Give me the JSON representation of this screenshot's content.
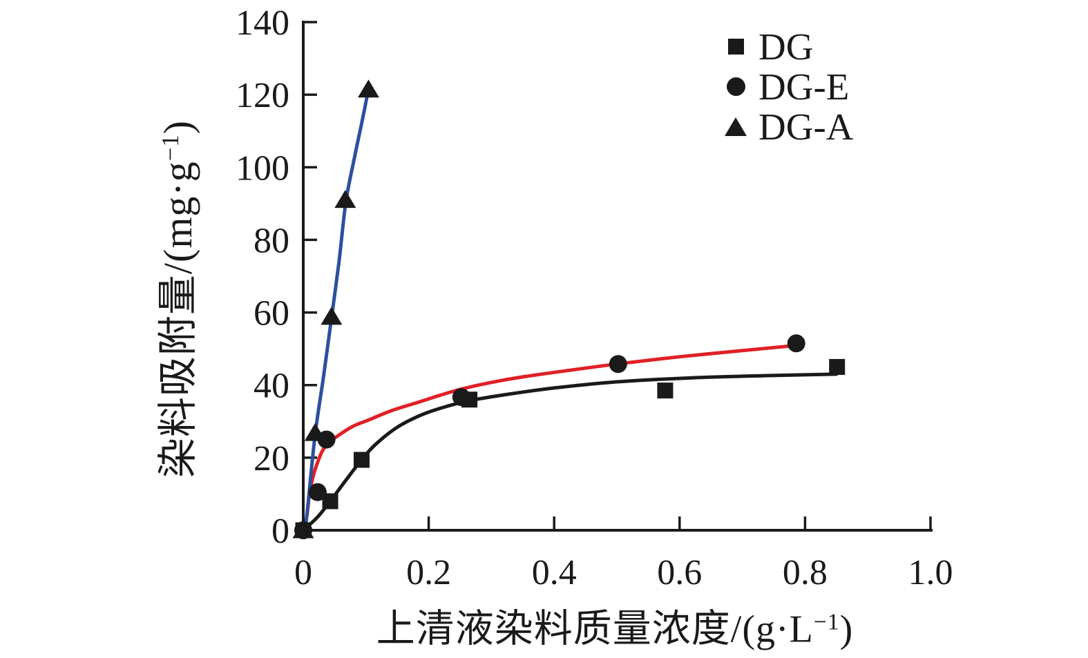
{
  "figure": {
    "background": "#ffffff",
    "ink_color": "#1a1a1a"
  },
  "legend": {
    "position": "top-right",
    "marker_color": "#1a1a1a",
    "items": [
      {
        "marker": "square",
        "label": "DG"
      },
      {
        "marker": "circle",
        "label": "DG-E"
      },
      {
        "marker": "triangle",
        "label": "DG-A"
      }
    ]
  },
  "chart_data": {
    "type": "scatter",
    "title": "",
    "xlabel": "上清液染料质量浓度/(g·L−1)",
    "xlabel_pre": "上清液染料质量浓度/(g·L",
    "xlabel_sup": "−1",
    "xlabel_post": ")",
    "ylabel": "染料吸附量/(mg·g−1)",
    "ylabel_pre": "染料吸附量/(mg·g",
    "ylabel_sup": "−1",
    "ylabel_post": ")",
    "xlim": [
      0,
      1.0
    ],
    "ylim": [
      0,
      140
    ],
    "grid": false,
    "legend_position": "top-right",
    "x_ticks": [
      {
        "value": 0,
        "label": "0"
      },
      {
        "value": 0.2,
        "label": "0.2"
      },
      {
        "value": 0.4,
        "label": "0.4"
      },
      {
        "value": 0.6,
        "label": "0.6"
      },
      {
        "value": 0.8,
        "label": "0.8"
      },
      {
        "value": 1.0,
        "label": "1.0"
      }
    ],
    "y_ticks": [
      {
        "value": 0,
        "label": "0"
      },
      {
        "value": 20,
        "label": "20"
      },
      {
        "value": 40,
        "label": "40"
      },
      {
        "value": 60,
        "label": "60"
      },
      {
        "value": 80,
        "label": "80"
      },
      {
        "value": 100,
        "label": "100"
      },
      {
        "value": 120,
        "label": "120"
      },
      {
        "value": 140,
        "label": "140"
      }
    ],
    "series": [
      {
        "name": "DG",
        "marker": "square",
        "marker_color": "#1a1a1a",
        "line_color": "#1a1a1a",
        "points": [
          [
            0,
            0
          ],
          [
            0.043,
            8
          ],
          [
            0.093,
            19.4
          ],
          [
            0.265,
            36
          ],
          [
            0.577,
            38.5
          ],
          [
            0.851,
            45
          ]
        ],
        "fit_curve": [
          [
            0,
            0
          ],
          [
            0.022,
            3.5
          ],
          [
            0.043,
            8
          ],
          [
            0.068,
            13.8
          ],
          [
            0.093,
            19.4
          ],
          [
            0.115,
            23.6
          ],
          [
            0.15,
            28.4
          ],
          [
            0.19,
            31.9
          ],
          [
            0.23,
            34.2
          ],
          [
            0.265,
            35.7
          ],
          [
            0.32,
            37.3
          ],
          [
            0.4,
            39.2
          ],
          [
            0.5,
            40.9
          ],
          [
            0.62,
            42.0
          ],
          [
            0.74,
            42.6
          ],
          [
            0.85,
            43.0
          ]
        ]
      },
      {
        "name": "DG-E",
        "marker": "circle",
        "marker_color": "#1a1a1a",
        "line_color": "#e02026",
        "points": [
          [
            0,
            0
          ],
          [
            0.023,
            10.5
          ],
          [
            0.037,
            25
          ],
          [
            0.252,
            36.7
          ],
          [
            0.502,
            45.8
          ],
          [
            0.786,
            51.5
          ]
        ],
        "fit_curve": [
          [
            0.006,
            4
          ],
          [
            0.01,
            10
          ],
          [
            0.016,
            15
          ],
          [
            0.023,
            18.8
          ],
          [
            0.031,
            22
          ],
          [
            0.042,
            24.3
          ],
          [
            0.06,
            26.6
          ],
          [
            0.08,
            28.7
          ],
          [
            0.103,
            30.3
          ],
          [
            0.14,
            32.9
          ],
          [
            0.18,
            35.1
          ],
          [
            0.25,
            38.8
          ],
          [
            0.32,
            41.4
          ],
          [
            0.4,
            43.5
          ],
          [
            0.5,
            45.8
          ],
          [
            0.6,
            47.8
          ],
          [
            0.7,
            49.5
          ],
          [
            0.79,
            51.0
          ]
        ]
      },
      {
        "name": "DG-A",
        "marker": "triangle",
        "marker_color": "#1a1a1a",
        "line_color": "#2d4f9e",
        "points": [
          [
            0,
            0
          ],
          [
            0.019,
            26.8
          ],
          [
            0.045,
            58.8
          ],
          [
            0.067,
            91
          ],
          [
            0.104,
            121.4
          ]
        ],
        "fit_curve": [
          [
            0.002,
            -2
          ],
          [
            0.008,
            8
          ],
          [
            0.019,
            26.5
          ],
          [
            0.032,
            42
          ],
          [
            0.045,
            58.5
          ],
          [
            0.057,
            74
          ],
          [
            0.068,
            90.5
          ],
          [
            0.082,
            103
          ],
          [
            0.093,
            112
          ],
          [
            0.104,
            121.5
          ]
        ]
      }
    ]
  }
}
